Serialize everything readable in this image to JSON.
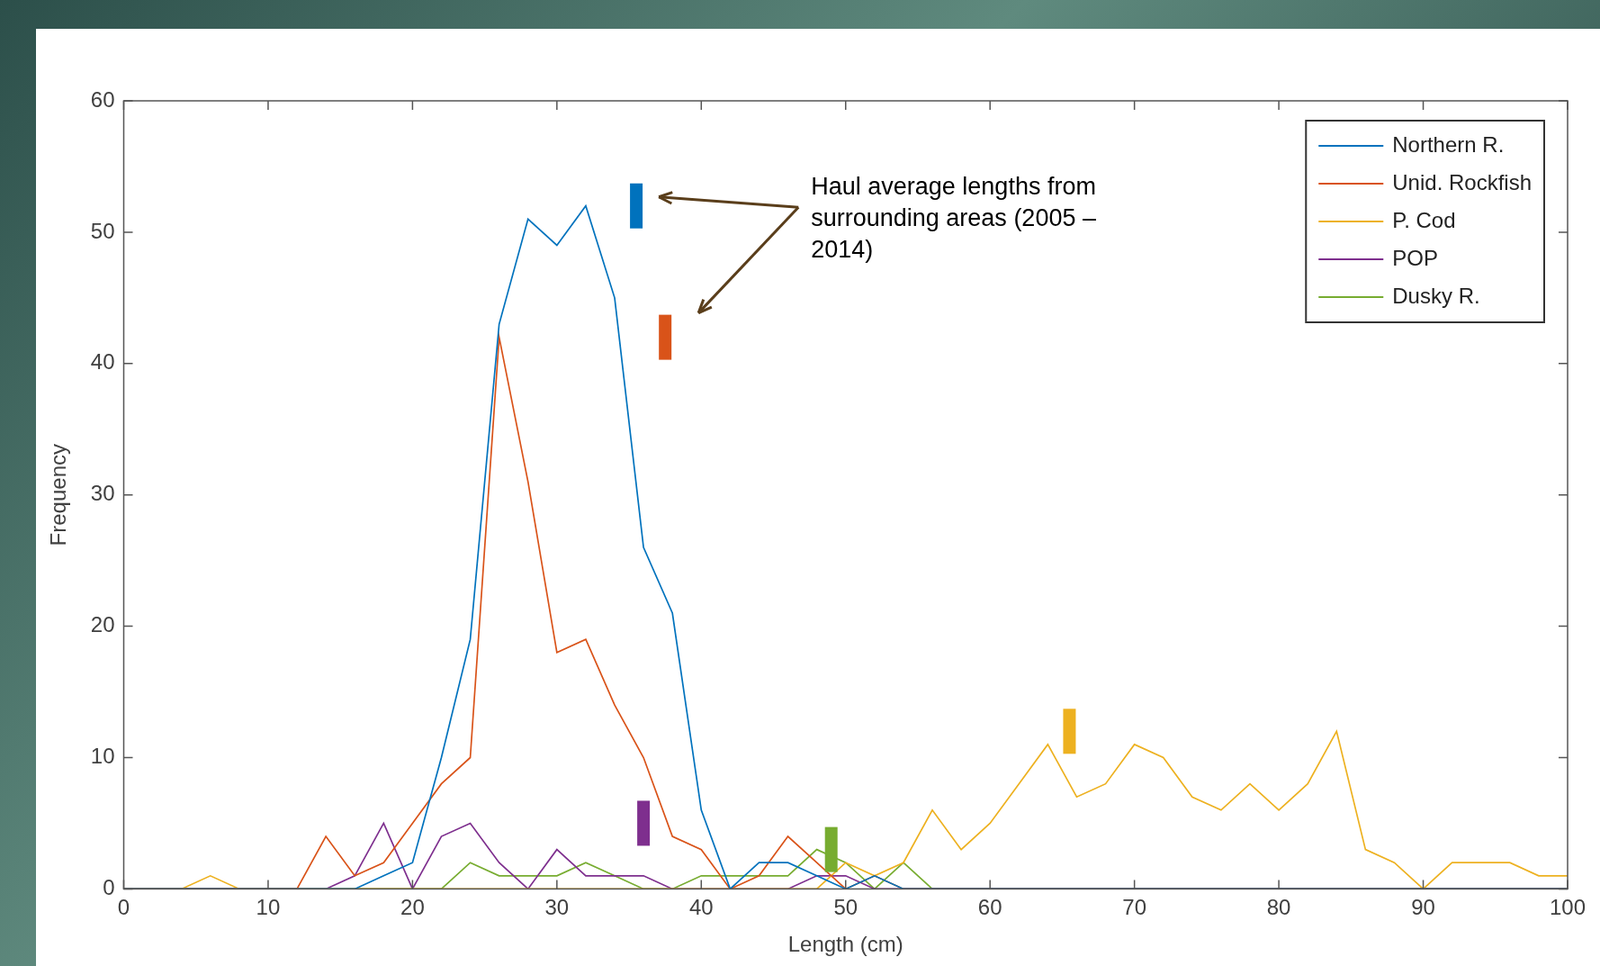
{
  "chart_data": {
    "type": "line",
    "xlabel": "Length (cm)",
    "ylabel": "Frequency",
    "annotation": "Haul average lengths from surrounding areas (2005 – 2014)",
    "x": [
      0,
      2,
      4,
      6,
      8,
      10,
      12,
      14,
      16,
      18,
      20,
      22,
      24,
      26,
      28,
      30,
      32,
      34,
      36,
      38,
      40,
      42,
      44,
      46,
      48,
      50,
      52,
      54,
      56,
      58,
      60,
      62,
      64,
      66,
      68,
      70,
      72,
      74,
      76,
      78,
      80,
      82,
      84,
      86,
      88,
      90,
      92,
      94,
      96,
      98,
      100
    ],
    "series": [
      {
        "name": "Northern R.",
        "color": "#0072bd",
        "haul_average": 35.5,
        "values": [
          0,
          0,
          0,
          0,
          0,
          0,
          0,
          0,
          0,
          1,
          2,
          10,
          19,
          43,
          51,
          49,
          52,
          45,
          26,
          21,
          6,
          0,
          2,
          2,
          1,
          0,
          1,
          0,
          0,
          0,
          0,
          0,
          0,
          0,
          0,
          0,
          0,
          0,
          0,
          0,
          0,
          0,
          0,
          0,
          0,
          0,
          0,
          0,
          0,
          0,
          0
        ]
      },
      {
        "name": "Unid. Rockfish",
        "color": "#d95319",
        "haul_average": 37.5,
        "values": [
          0,
          0,
          0,
          0,
          0,
          0,
          0,
          4,
          1,
          2,
          5,
          8,
          10,
          42,
          31,
          18,
          19,
          14,
          10,
          4,
          3,
          0,
          1,
          4,
          2,
          0,
          1,
          0,
          0,
          0,
          0,
          0,
          0,
          0,
          0,
          0,
          0,
          0,
          0,
          0,
          0,
          0,
          0,
          0,
          0,
          0,
          0,
          0,
          0,
          0,
          0
        ]
      },
      {
        "name": "P. Cod",
        "color": "#edb120",
        "haul_average": 65.5,
        "values": [
          0,
          0,
          0,
          1,
          0,
          0,
          0,
          0,
          0,
          0,
          0,
          0,
          0,
          0,
          0,
          0,
          0,
          0,
          0,
          0,
          0,
          0,
          0,
          0,
          0,
          2,
          1,
          2,
          6,
          3,
          5,
          8,
          11,
          7,
          8,
          11,
          10,
          7,
          6,
          8,
          6,
          8,
          12,
          3,
          2,
          0,
          2,
          2,
          2,
          1,
          1
        ]
      },
      {
        "name": "POP",
        "color": "#7e2f8e",
        "haul_average": 36,
        "values": [
          0,
          0,
          0,
          0,
          0,
          0,
          0,
          0,
          1,
          5,
          0,
          4,
          5,
          2,
          0,
          3,
          1,
          1,
          1,
          0,
          0,
          0,
          0,
          0,
          1,
          1,
          0,
          0,
          0,
          0,
          0,
          0,
          0,
          0,
          0,
          0,
          0,
          0,
          0,
          0,
          0,
          0,
          0,
          0,
          0,
          0,
          0,
          0,
          0,
          0,
          0
        ]
      },
      {
        "name": "Dusky R.",
        "color": "#77ac30",
        "haul_average": 49,
        "values": [
          0,
          0,
          0,
          0,
          0,
          0,
          0,
          0,
          0,
          0,
          0,
          0,
          2,
          1,
          1,
          1,
          2,
          1,
          0,
          0,
          1,
          1,
          1,
          1,
          3,
          2,
          0,
          2,
          0,
          0,
          0,
          0,
          0,
          0,
          0,
          0,
          0,
          0,
          0,
          0,
          0,
          0,
          0,
          0,
          0,
          0,
          0,
          0,
          0,
          0,
          0
        ]
      }
    ],
    "xlim": [
      0,
      100
    ],
    "xticks": [
      0,
      10,
      20,
      30,
      40,
      50,
      60,
      70,
      80,
      90,
      100
    ],
    "ylim": [
      0,
      60
    ],
    "yticks": [
      0,
      10,
      20,
      30,
      40,
      50,
      60
    ],
    "grid": false,
    "legend": "top right"
  }
}
